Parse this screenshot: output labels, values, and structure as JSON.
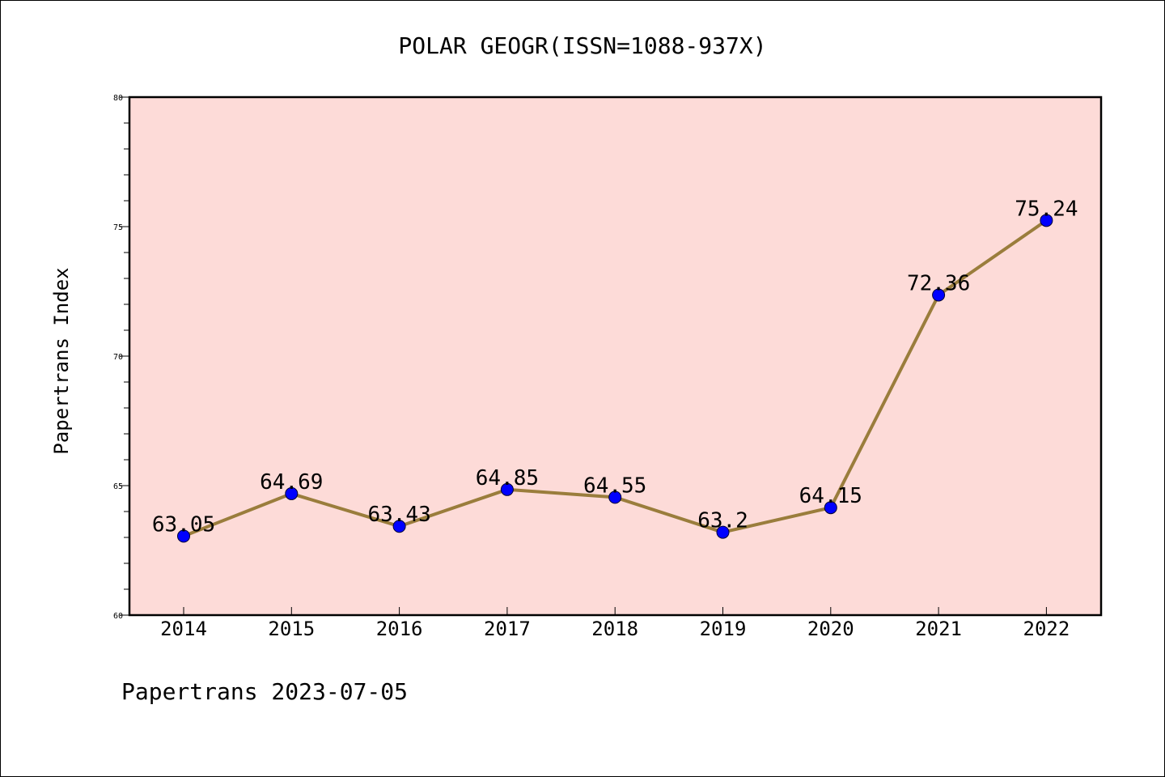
{
  "chart_data": {
    "type": "line",
    "title": "POLAR GEOGR(ISSN=1088-937X)",
    "xlabel": "",
    "ylabel": "Papertrans Index",
    "categories": [
      "2014",
      "2015",
      "2016",
      "2017",
      "2018",
      "2019",
      "2020",
      "2021",
      "2022"
    ],
    "values": [
      63.05,
      64.69,
      63.43,
      64.85,
      64.55,
      63.2,
      64.15,
      72.36,
      75.24
    ],
    "data_labels": [
      "63.05",
      "64.69",
      "63.43",
      "64.85",
      "64.55",
      "63.2",
      "64.15",
      "72.36",
      "75.24"
    ],
    "ylim": [
      60,
      80
    ],
    "yticks": [
      "60",
      "65",
      "70",
      "75",
      "80"
    ],
    "ytick_values": [
      60,
      65,
      70,
      75,
      80
    ],
    "grid": false,
    "colors": {
      "plot_background": "#fddbd8",
      "line": "#9a7d3c",
      "marker": "#0000ff"
    }
  },
  "footer": "Papertrans 2023-07-05"
}
